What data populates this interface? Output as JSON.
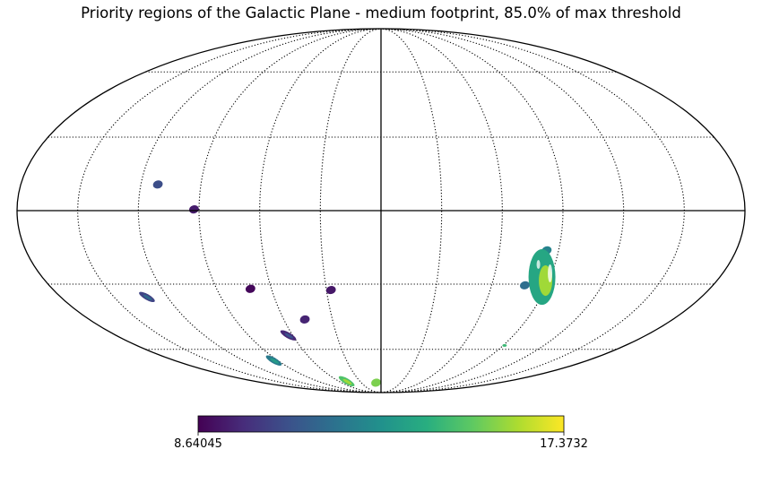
{
  "chart_data": {
    "type": "heatmap",
    "title": "Priority regions of the Galactic Plane - medium footprint, 85.0% of max threshold",
    "projection": "mollweide",
    "graticule": {
      "meridians_deg": [
        -150,
        -120,
        -90,
        -60,
        -30,
        0,
        30,
        60,
        90,
        120,
        150
      ],
      "parallels_deg": [
        -60,
        -30,
        0,
        30,
        60
      ],
      "style": "dotted",
      "center_lines": "solid"
    },
    "colormap": "viridis",
    "colorbar": {
      "min": 8.64045,
      "max": 17.3732,
      "min_label": "8.64045",
      "max_label": "17.3732",
      "placement": "bottom"
    },
    "regions": [
      {
        "lon": -111.5,
        "lat": 10.5,
        "value": 10.7,
        "shape": "blob"
      },
      {
        "lon": -92.5,
        "lat": 0.5,
        "value": 9.3,
        "shape": "blob"
      },
      {
        "lon": -131.5,
        "lat": -35.5,
        "value": 10.4,
        "shape": "streak"
      },
      {
        "lon": -71.5,
        "lat": -32.0,
        "value": 8.8,
        "shape": "blob"
      },
      {
        "lon": -27.5,
        "lat": -32.5,
        "value": 9.2,
        "shape": "blob"
      },
      {
        "lon": -47.0,
        "lat": -45.5,
        "value": 9.5,
        "shape": "blob"
      },
      {
        "lon": -63.0,
        "lat": -53.0,
        "value": 9.6,
        "shape": "streak"
      },
      {
        "lon": -93.5,
        "lat": -66.0,
        "value": 12.2,
        "shape": "streak"
      },
      {
        "lon": -49.0,
        "lat": -79.0,
        "value": 14.9,
        "shape": "streak"
      },
      {
        "lon": -7.5,
        "lat": -80.0,
        "value": 15.6,
        "shape": "blob"
      },
      {
        "lon": 85.0,
        "lat": -29.5,
        "value": 11.2,
        "shape": "blob"
      },
      {
        "lon": 84.0,
        "lat": -16.0,
        "value": 12.5,
        "shape": "blob"
      },
      {
        "lon": 85.5,
        "lat": -27.0,
        "value": 14.8,
        "shape": "cluster"
      },
      {
        "lon": 91.0,
        "lat": -58.0,
        "value": 14.5,
        "shape": "dot"
      },
      {
        "lon": 78.0,
        "lat": -30.5,
        "value": 11.8,
        "shape": "blob"
      }
    ]
  }
}
